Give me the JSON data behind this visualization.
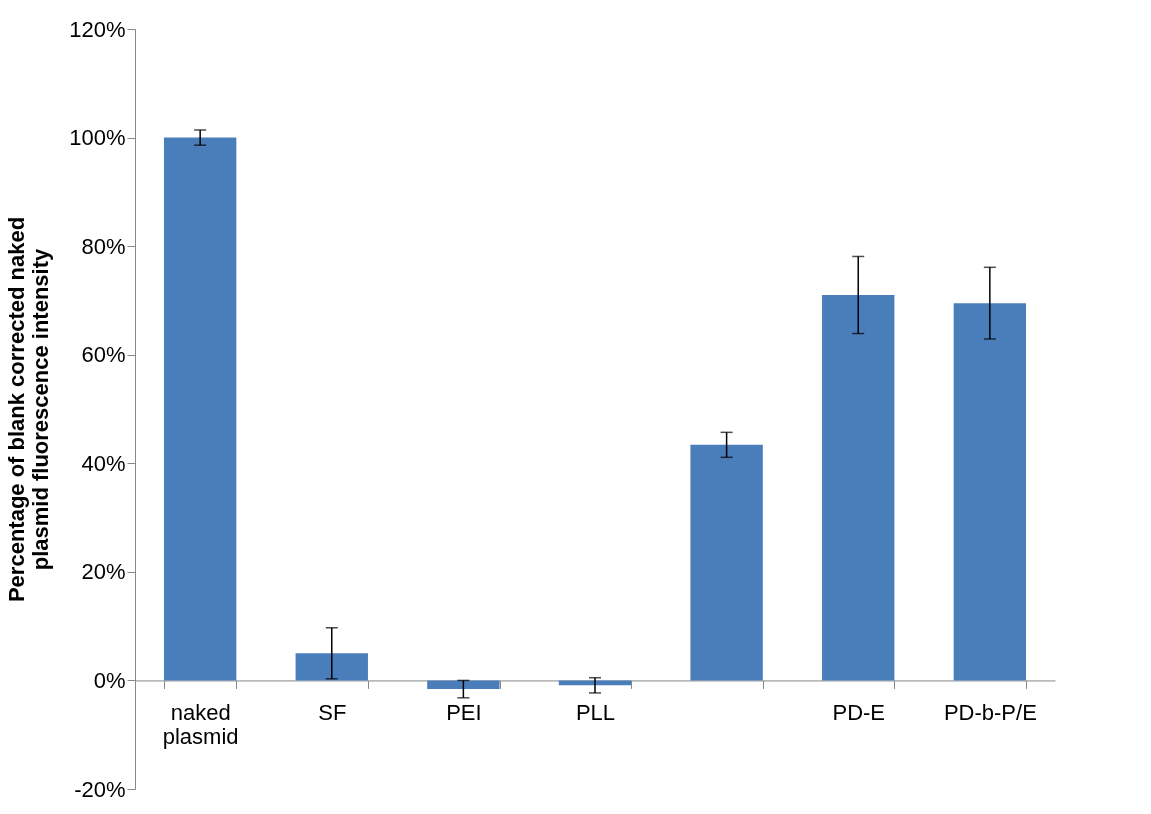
{
  "chart_data": {
    "type": "bar",
    "ylabel": "Percentage of blank corrected naked plasmid fluorescence intensity",
    "categories": [
      "naked plasmid",
      "SF",
      "PEI",
      "PLL",
      null,
      "PD-E",
      "PD-b-P/E"
    ],
    "values": [
      100,
      5.0,
      -1.6,
      -0.9,
      43.4,
      71.0,
      69.5
    ],
    "errors": [
      1.4,
      4.7,
      1.6,
      1.4,
      2.3,
      7.1,
      6.6
    ],
    "color": "#4a7ebb",
    "ylim": [
      -20,
      120
    ],
    "yticks": [
      {
        "value": -20,
        "label": "-20%"
      },
      {
        "value": 0,
        "label": "0%"
      },
      {
        "value": 20,
        "label": "20%"
      },
      {
        "value": 40,
        "label": "40%"
      },
      {
        "value": 60,
        "label": "60%"
      },
      {
        "value": 80,
        "label": "80%"
      },
      {
        "value": 100,
        "label": "100%"
      },
      {
        "value": 120,
        "label": "120%"
      }
    ],
    "grid": false
  }
}
